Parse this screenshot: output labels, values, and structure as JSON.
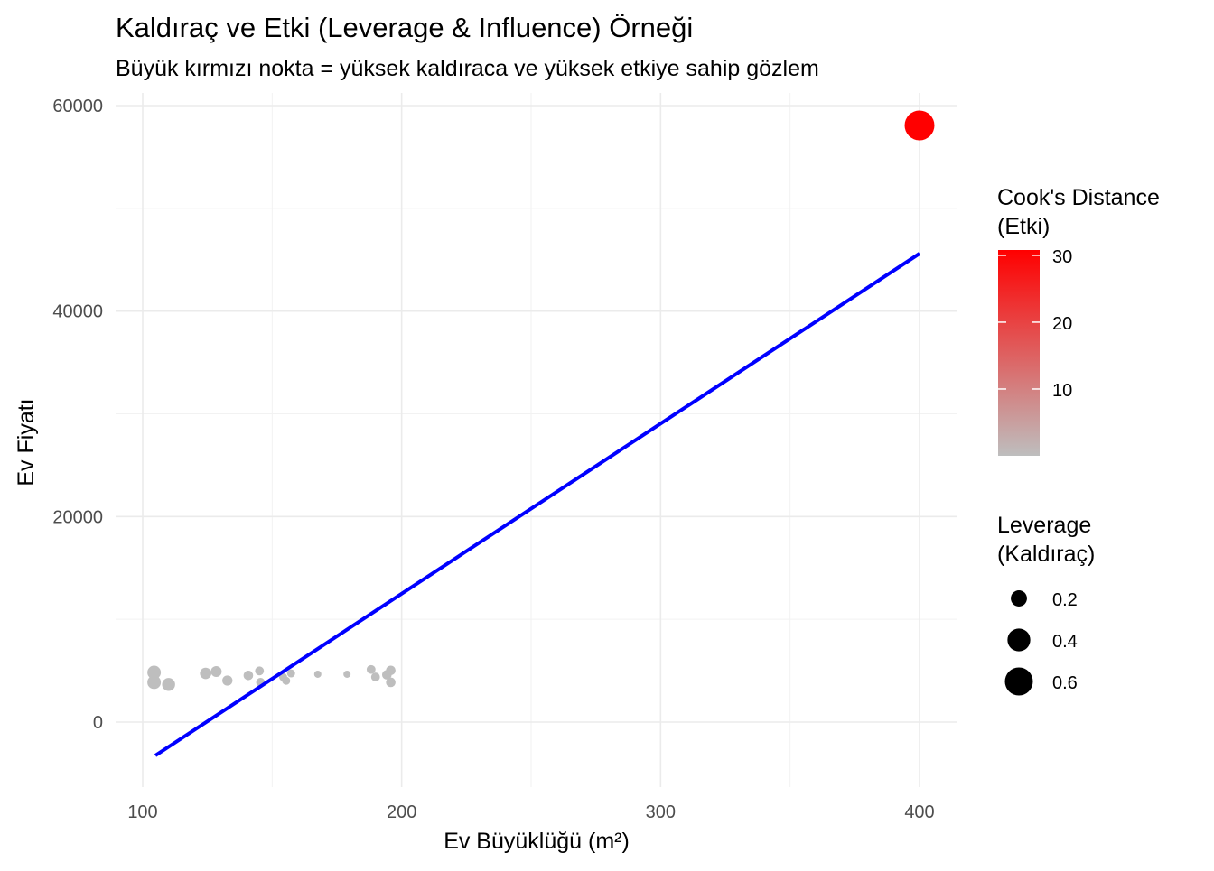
{
  "chart_data": {
    "type": "scatter",
    "title": "Kaldıraç ve Etki (Leverage & Influence) Örneği",
    "subtitle": "Büyük kırmızı nokta = yüksek kaldıraca ve yüksek etkiye sahip gözlem",
    "xlabel": "Ev Büyüklüğü (m²)",
    "ylabel": "Ev Fiyatı",
    "xlim": [
      90,
      415
    ],
    "ylim": [
      -6500,
      60500
    ],
    "x_ticks": [
      100,
      200,
      300,
      400
    ],
    "y_ticks": [
      0,
      20000,
      40000,
      60000
    ],
    "grid": true,
    "points": [
      {
        "x": 104.4,
        "y": 4830,
        "leverage": 0.14,
        "cooks": 0.05
      },
      {
        "x": 104.4,
        "y": 3870,
        "leverage": 0.14,
        "cooks": 0.05
      },
      {
        "x": 110.0,
        "y": 3660,
        "leverage": 0.13,
        "cooks": 0.05
      },
      {
        "x": 124.3,
        "y": 4740,
        "leverage": 0.1,
        "cooks": 0.03
      },
      {
        "x": 128.4,
        "y": 4920,
        "leverage": 0.09,
        "cooks": 0.03
      },
      {
        "x": 132.7,
        "y": 4040,
        "leverage": 0.08,
        "cooks": 0.02
      },
      {
        "x": 140.8,
        "y": 4540,
        "leverage": 0.07,
        "cooks": 0.02
      },
      {
        "x": 145.1,
        "y": 4980,
        "leverage": 0.06,
        "cooks": 0.02
      },
      {
        "x": 145.5,
        "y": 3870,
        "leverage": 0.06,
        "cooks": 0.02
      },
      {
        "x": 154.2,
        "y": 4390,
        "leverage": 0.05,
        "cooks": 0.01
      },
      {
        "x": 157.3,
        "y": 4740,
        "leverage": 0.05,
        "cooks": 0.01
      },
      {
        "x": 155.4,
        "y": 4020,
        "leverage": 0.05,
        "cooks": 0.01
      },
      {
        "x": 167.6,
        "y": 4660,
        "leverage": 0.04,
        "cooks": 0.01
      },
      {
        "x": 178.9,
        "y": 4660,
        "leverage": 0.04,
        "cooks": 0.01
      },
      {
        "x": 188.2,
        "y": 5120,
        "leverage": 0.06,
        "cooks": 0.02
      },
      {
        "x": 189.9,
        "y": 4390,
        "leverage": 0.06,
        "cooks": 0.02
      },
      {
        "x": 195.8,
        "y": 5030,
        "leverage": 0.07,
        "cooks": 0.02
      },
      {
        "x": 194.3,
        "y": 4600,
        "leverage": 0.07,
        "cooks": 0.02
      },
      {
        "x": 195.8,
        "y": 3870,
        "leverage": 0.07,
        "cooks": 0.02
      },
      {
        "x": 400.0,
        "y": 58070,
        "leverage": 0.68,
        "cooks": 30.8
      }
    ],
    "regression_line": {
      "x": [
        104.9,
        400
      ],
      "y": [
        -3250,
        45600
      ],
      "color": "#0000FF"
    },
    "legends": {
      "color": {
        "title": "Cook's Distance\n(Etki)",
        "title_lines": [
          "Cook's Distance",
          "(Etki)"
        ],
        "breaks": [
          10,
          20,
          30
        ],
        "range": [
          0,
          30.8
        ],
        "low": "#BEBEBE",
        "high": "#FF0000",
        "placement": "right"
      },
      "size": {
        "title_lines": [
          "Leverage",
          "(Kaldıraç)"
        ],
        "breaks": [
          0.2,
          0.4,
          0.6
        ],
        "placement": "right"
      }
    }
  }
}
